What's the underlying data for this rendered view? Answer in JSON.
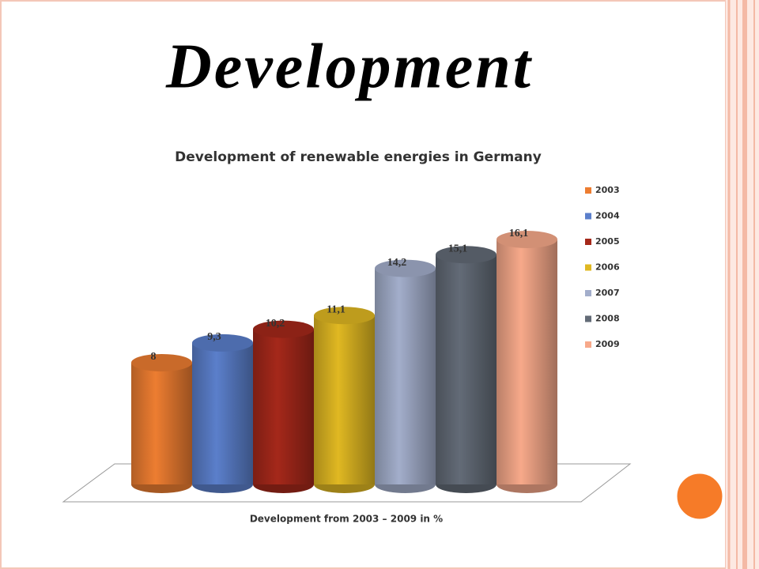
{
  "slide": {
    "title": "Development"
  },
  "chart_data": {
    "type": "cylinder",
    "title": "Development of renewable energies in Germany",
    "x_label": "Development from 2003 – 2009 in %",
    "series": [
      {
        "name": "2003",
        "color": "#ed7d31",
        "values": [
          8
        ],
        "value_labels": [
          "8"
        ]
      },
      {
        "name": "2004",
        "color": "#5b7fcb",
        "values": [
          9.3
        ],
        "value_labels": [
          "9,3"
        ]
      },
      {
        "name": "2005",
        "color": "#a5281a",
        "values": [
          10.2
        ],
        "value_labels": [
          "10,2"
        ]
      },
      {
        "name": "2006",
        "color": "#e0b822",
        "values": [
          11.1
        ],
        "value_labels": [
          "11,1"
        ]
      },
      {
        "name": "2007",
        "color": "#a3aecb",
        "values": [
          14.2
        ],
        "value_labels": [
          "14,2"
        ]
      },
      {
        "name": "2008",
        "color": "#636b77",
        "values": [
          15.1
        ],
        "value_labels": [
          "15,1"
        ]
      },
      {
        "name": "2009",
        "color": "#f7a98a",
        "values": [
          16.1
        ],
        "value_labels": [
          "16,1"
        ]
      }
    ]
  }
}
